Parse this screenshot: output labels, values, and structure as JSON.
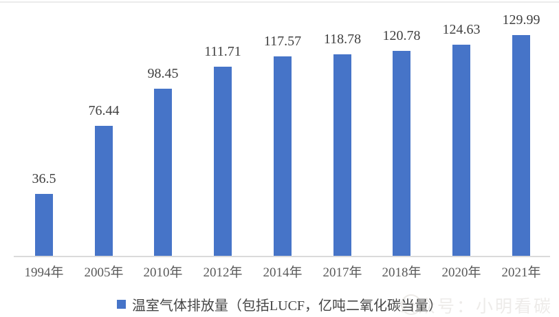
{
  "chart_data": {
    "type": "bar",
    "categories": [
      "1994年",
      "2005年",
      "2010年",
      "2012年",
      "2014年",
      "2017年",
      "2018年",
      "2020年",
      "2021年"
    ],
    "values": [
      36.5,
      76.44,
      98.45,
      111.71,
      117.57,
      118.78,
      120.78,
      124.63,
      129.99
    ],
    "series_label": "温室气体排放量（包括LUCF，亿吨二氧化碳当量）",
    "title": "",
    "xlabel": "",
    "ylabel": "",
    "ylim": [
      0,
      140
    ],
    "grid": false,
    "legend_position": "bottom",
    "bar_color": "#4674C8",
    "value_label_color": "#404040",
    "axis_tick_color": "#595959",
    "axis_line_color": "#dadada"
  },
  "watermark": {
    "text": "公众号：小明看碳"
  }
}
